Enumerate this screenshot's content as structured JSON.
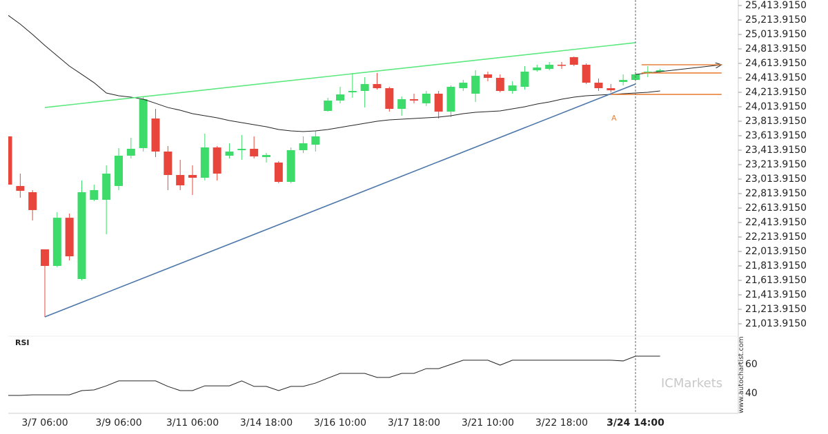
{
  "chart_data": [
    {
      "type": "candlestick",
      "categories": [
        null,
        null,
        null,
        "3/7 06:00",
        null,
        null,
        null,
        null,
        null,
        "3/9 06:00",
        null,
        null,
        null,
        null,
        null,
        "3/11 06:00",
        null,
        null,
        null,
        null,
        null,
        "3/14 18:00",
        null,
        null,
        null,
        null,
        null,
        "3/16 10:00",
        null,
        null,
        null,
        null,
        null,
        "3/17 18:00",
        null,
        null,
        null,
        null,
        null,
        "3/21 10:00",
        null,
        null,
        null,
        null,
        null,
        "3/22 18:00",
        null,
        null,
        null,
        null,
        null,
        "3/24 14:00",
        null,
        null
      ],
      "open": [
        23605,
        22919,
        22833,
        22043,
        21814,
        22480,
        21633,
        22728,
        22728,
        22919,
        23338,
        23443,
        23852,
        23395,
        23071,
        23071,
        23033,
        23452,
        23338,
        23414,
        23433,
        23319,
        23243,
        22976,
        23414,
        23490,
        23957,
        24100,
        24214,
        24233,
        24328,
        24271,
        23985,
        24119,
        24062,
        24195,
        23947,
        24271,
        24195,
        24462,
        24414,
        24233,
        24290,
        24519,
        24538,
        24595,
        24700,
        24595,
        24347,
        24271,
        24357,
        24385,
        24481,
        24500
      ],
      "high": [
        23605,
        23090,
        22862,
        22043,
        22557,
        22538,
        22995,
        22938,
        23204,
        23443,
        23585,
        24157,
        23985,
        23471,
        23281,
        23204,
        23643,
        23471,
        23509,
        23624,
        23605,
        23376,
        23262,
        23452,
        23605,
        23681,
        24138,
        24290,
        24481,
        24423,
        24481,
        24290,
        24157,
        24195,
        24233,
        24233,
        24309,
        24385,
        24519,
        24500,
        24462,
        24366,
        24576,
        24595,
        24633,
        24633,
        24709,
        24614,
        24404,
        24328,
        24462,
        24500,
        24576,
        24538
      ],
      "low": [
        22938,
        22757,
        22442,
        21109,
        21795,
        21890,
        21614,
        22709,
        22252,
        22862,
        23300,
        23395,
        23319,
        22862,
        22862,
        22795,
        22995,
        22995,
        23300,
        23281,
        23300,
        23243,
        22957,
        22957,
        23376,
        23395,
        23947,
        24062,
        24138,
        24004,
        24252,
        23947,
        23890,
        24062,
        24024,
        23852,
        23871,
        24233,
        24081,
        24366,
        24214,
        24195,
        24252,
        24500,
        24519,
        24538,
        24576,
        24328,
        24233,
        24214,
        24309,
        24366,
        24423,
        24481
      ],
      "close": [
        22938,
        22852,
        22586,
        21814,
        22480,
        21947,
        22833,
        22862,
        23090,
        23338,
        23433,
        24119,
        23395,
        23071,
        22928,
        23033,
        23452,
        23090,
        23395,
        23433,
        23328,
        23347,
        22976,
        23414,
        23509,
        23605,
        24100,
        24185,
        24233,
        24328,
        24271,
        23985,
        24119,
        24100,
        24195,
        23947,
        24290,
        24347,
        24442,
        24414,
        24233,
        24309,
        24500,
        24557,
        24595,
        24585,
        24595,
        24347,
        24271,
        24242,
        24385,
        24462,
        24500,
        24519
      ],
      "up_color": "#3ddc6a",
      "down_color": "#e8463c",
      "moving_average": {
        "color": "#222222",
        "values": [
          25281,
          25157,
          25014,
          24862,
          24719,
          24576,
          24462,
          24347,
          24204,
          24166,
          24147,
          24119,
          24062,
          24004,
          23966,
          23919,
          23890,
          23862,
          23824,
          23795,
          23766,
          23738,
          23700,
          23681,
          23671,
          23681,
          23700,
          23728,
          23757,
          23785,
          23814,
          23833,
          23843,
          23852,
          23862,
          23871,
          23890,
          23919,
          23938,
          23947,
          23957,
          23985,
          24014,
          24052,
          24081,
          24119,
          24147,
          24166,
          24176,
          24185,
          24195,
          24204,
          24214,
          24233
        ]
      },
      "trendlines": [
        {
          "color": "#5be87e",
          "x": [
            3,
            51
          ],
          "values": [
            24004,
            24900
          ]
        },
        {
          "color": "#4a76aa",
          "x": [
            3,
            51
          ],
          "values": [
            21109,
            24328
          ]
        },
        {
          "color": "#222222",
          "x": [
            51,
            58
          ],
          "values": [
            24462,
            24595
          ],
          "arrow": true
        },
        {
          "color": "#e8823a",
          "x": [
            51.5,
            58
          ],
          "values": [
            24595,
            24595
          ]
        },
        {
          "color": "#e8823a",
          "x": [
            51.5,
            58
          ],
          "values": [
            24481,
            24481
          ]
        },
        {
          "color": "#e8823a",
          "x": [
            49,
            58
          ],
          "values": [
            24185,
            24185
          ]
        }
      ],
      "annotation": "A",
      "watermark": "ICMarkets",
      "source": "www.autochartist.com",
      "ylim": [
        20852.3,
        25490.1
      ],
      "yticks": [
        {
          "value": 21013.915,
          "label": "21,013.9150"
        },
        {
          "value": 21213.915,
          "label": "21,213.9150"
        },
        {
          "value": 21413.915,
          "label": "21,413.9150"
        },
        {
          "value": 21613.915,
          "label": "21,613.9150"
        },
        {
          "value": 21813.915,
          "label": "21,813.9150"
        },
        {
          "value": 22013.915,
          "label": "22,013.9150"
        },
        {
          "value": 22213.915,
          "label": "22,213.9150"
        },
        {
          "value": 22413.915,
          "label": "22,413.9150"
        },
        {
          "value": 22613.915,
          "label": "22,613.9150"
        },
        {
          "value": 22813.915,
          "label": "22,813.9150"
        },
        {
          "value": 23013.915,
          "label": "23,013.9150"
        },
        {
          "value": 23213.915,
          "label": "23,213.9150"
        },
        {
          "value": 23413.915,
          "label": "23,413.9150"
        },
        {
          "value": 23613.915,
          "label": "23,613.9150"
        },
        {
          "value": 23813.915,
          "label": "23,813.9150"
        },
        {
          "value": 24013.915,
          "label": "24,013.9150"
        },
        {
          "value": 24213.915,
          "label": "24,213.9150"
        },
        {
          "value": 24413.915,
          "label": "24,413.9150"
        },
        {
          "value": 24613.915,
          "label": "24,613.9150"
        },
        {
          "value": 24813.915,
          "label": "24,813.9150"
        },
        {
          "value": 25013.915,
          "label": "25,013.9150"
        },
        {
          "value": 25213.915,
          "label": "25,213.9150"
        },
        {
          "value": 25413.915,
          "label": "25,413.9150"
        }
      ]
    },
    {
      "type": "line",
      "title": "RSI",
      "color": "#222222",
      "values": [
        38.6,
        38.6,
        39.0,
        39.0,
        39.0,
        39.0,
        41.9,
        42.4,
        45.2,
        48.6,
        48.6,
        48.6,
        48.6,
        44.8,
        41.9,
        41.9,
        45.2,
        45.2,
        45.2,
        48.6,
        44.8,
        44.8,
        41.9,
        44.8,
        44.8,
        47.1,
        50.5,
        53.8,
        53.8,
        53.8,
        51.0,
        51.0,
        53.8,
        53.8,
        57.1,
        57.1,
        60.0,
        62.9,
        62.9,
        62.9,
        59.5,
        62.9,
        62.9,
        62.9,
        62.9,
        62.9,
        62.9,
        62.9,
        62.9,
        62.9,
        62.4,
        65.7,
        65.7,
        65.7
      ],
      "ylim": [
        26.2,
        79.5
      ],
      "yticks": [
        40,
        60
      ]
    }
  ]
}
